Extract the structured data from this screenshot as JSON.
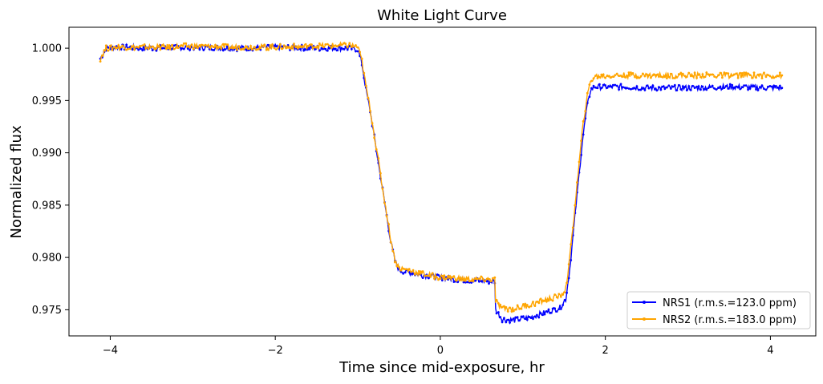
{
  "chart_data": {
    "type": "line",
    "title": "White Light Curve",
    "xlabel": "Time since mid-exposure, hr",
    "ylabel": "Normalized flux",
    "xlim": [
      -4.5,
      4.55
    ],
    "ylim": [
      0.9725,
      1.002
    ],
    "xticks": [
      -4,
      -2,
      0,
      2,
      4
    ],
    "xtick_labels": [
      "−4",
      "−2",
      "0",
      "2",
      "4"
    ],
    "yticks": [
      0.975,
      0.98,
      0.985,
      0.99,
      0.995,
      1.0
    ],
    "ytick_labels": [
      "0.975",
      "0.980",
      "0.985",
      "0.990",
      "0.995",
      "1.000"
    ],
    "grid": false,
    "legend_position": "bottom-right",
    "series": [
      {
        "name": "NRS1 (r.m.s.=123.0 ppm)",
        "color": "#0000ff",
        "points": [
          [
            -4.12,
            0.999
          ],
          [
            -4.05,
            1.0
          ],
          [
            -3.9,
            1.0001
          ],
          [
            -3.5,
            1.0
          ],
          [
            -3.0,
            1.0001
          ],
          [
            -2.5,
            1.0
          ],
          [
            -2.0,
            1.0001
          ],
          [
            -1.5,
            1.0
          ],
          [
            -1.1,
            1.0
          ],
          [
            -1.0,
            0.9999
          ],
          [
            -0.95,
            0.9985
          ],
          [
            -0.9,
            0.996
          ],
          [
            -0.85,
            0.994
          ],
          [
            -0.8,
            0.9915
          ],
          [
            -0.75,
            0.989
          ],
          [
            -0.7,
            0.9865
          ],
          [
            -0.65,
            0.984
          ],
          [
            -0.6,
            0.9815
          ],
          [
            -0.55,
            0.9797
          ],
          [
            -0.5,
            0.9788
          ],
          [
            -0.4,
            0.9786
          ],
          [
            -0.2,
            0.9783
          ],
          [
            0.0,
            0.9781
          ],
          [
            0.2,
            0.9779
          ],
          [
            0.4,
            0.9778
          ],
          [
            0.66,
            0.9777
          ],
          [
            0.67,
            0.975
          ],
          [
            0.75,
            0.9741
          ],
          [
            0.9,
            0.974
          ],
          [
            1.1,
            0.9743
          ],
          [
            1.3,
            0.9748
          ],
          [
            1.45,
            0.9752
          ],
          [
            1.52,
            0.976
          ],
          [
            1.57,
            0.979
          ],
          [
            1.62,
            0.983
          ],
          [
            1.67,
            0.987
          ],
          [
            1.72,
            0.991
          ],
          [
            1.77,
            0.994
          ],
          [
            1.82,
            0.996
          ],
          [
            1.87,
            0.9963
          ],
          [
            2.2,
            0.9963
          ],
          [
            2.6,
            0.9962
          ],
          [
            3.0,
            0.9962
          ],
          [
            3.5,
            0.9963
          ],
          [
            4.14,
            0.9962
          ]
        ]
      },
      {
        "name": "NRS2 (r.m.s.=183.0 ppm)",
        "color": "#ffa500",
        "points": [
          [
            -4.12,
            0.999
          ],
          [
            -4.05,
            1.0
          ],
          [
            -3.9,
            1.0001
          ],
          [
            -3.5,
            1.0001
          ],
          [
            -3.0,
            1.0002
          ],
          [
            -2.5,
            1.0001
          ],
          [
            -2.0,
            1.0001
          ],
          [
            -1.5,
            1.0002
          ],
          [
            -1.1,
            1.0003
          ],
          [
            -1.0,
            1.0001
          ],
          [
            -0.95,
            0.9988
          ],
          [
            -0.9,
            0.9963
          ],
          [
            -0.85,
            0.9942
          ],
          [
            -0.8,
            0.9917
          ],
          [
            -0.75,
            0.9892
          ],
          [
            -0.7,
            0.9866
          ],
          [
            -0.65,
            0.9842
          ],
          [
            -0.6,
            0.9817
          ],
          [
            -0.55,
            0.9798
          ],
          [
            -0.5,
            0.979
          ],
          [
            -0.4,
            0.9788
          ],
          [
            -0.2,
            0.9784
          ],
          [
            0.0,
            0.9781
          ],
          [
            0.2,
            0.978
          ],
          [
            0.4,
            0.9779
          ],
          [
            0.66,
            0.9779
          ],
          [
            0.67,
            0.9758
          ],
          [
            0.75,
            0.9751
          ],
          [
            0.9,
            0.9751
          ],
          [
            1.1,
            0.9755
          ],
          [
            1.3,
            0.976
          ],
          [
            1.45,
            0.9763
          ],
          [
            1.52,
            0.977
          ],
          [
            1.57,
            0.98
          ],
          [
            1.62,
            0.984
          ],
          [
            1.67,
            0.988
          ],
          [
            1.72,
            0.992
          ],
          [
            1.77,
            0.995
          ],
          [
            1.82,
            0.9968
          ],
          [
            1.87,
            0.9973
          ],
          [
            2.2,
            0.9974
          ],
          [
            2.6,
            0.9974
          ],
          [
            3.0,
            0.9974
          ],
          [
            3.5,
            0.9974
          ],
          [
            4.14,
            0.9974
          ]
        ]
      }
    ]
  }
}
